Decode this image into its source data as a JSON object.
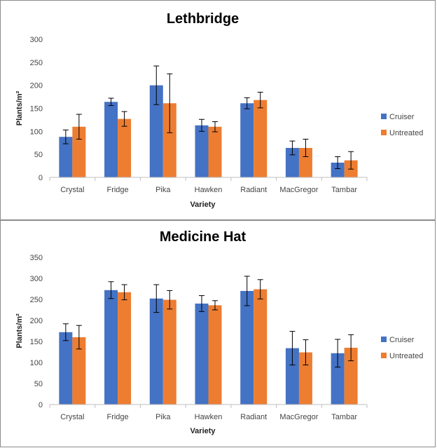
{
  "chart_data": [
    {
      "type": "bar",
      "title": "Lethbridge",
      "xlabel": "Variety",
      "ylabel": "Plants/m²",
      "categories": [
        "Crystal",
        "Fridge",
        "Pika",
        "Hawken",
        "Radiant",
        "MacGregor",
        "Tambar"
      ],
      "ylim": [
        0,
        300
      ],
      "yticks": [
        0,
        50,
        100,
        150,
        200,
        250,
        300
      ],
      "grid": false,
      "legend_position": "right",
      "error_bars": true,
      "series": [
        {
          "name": "Cruiser",
          "color": "#4472C4",
          "values": [
            88,
            164,
            200,
            113,
            161,
            64,
            32
          ],
          "error": [
            15,
            8,
            42,
            13,
            12,
            15,
            13
          ]
        },
        {
          "name": "Untreated",
          "color": "#ED7D31",
          "values": [
            110,
            127,
            161,
            110,
            168,
            64,
            37
          ],
          "error": [
            27,
            16,
            64,
            11,
            17,
            19,
            19
          ]
        }
      ]
    },
    {
      "type": "bar",
      "title": "Medicine Hat",
      "xlabel": "Variety",
      "ylabel": "Plants/m²",
      "categories": [
        "Crystal",
        "Fridge",
        "Pika",
        "Hawken",
        "Radiant",
        "MacGregor",
        "Tambar"
      ],
      "ylim": [
        0,
        350
      ],
      "yticks": [
        0,
        50,
        100,
        150,
        200,
        250,
        300,
        350
      ],
      "grid": false,
      "legend_position": "right",
      "error_bars": true,
      "series": [
        {
          "name": "Cruiser",
          "color": "#4472C4",
          "values": [
            172,
            272,
            252,
            240,
            270,
            134,
            122
          ],
          "error": [
            20,
            20,
            33,
            19,
            35,
            40,
            33
          ]
        },
        {
          "name": "Untreated",
          "color": "#ED7D31",
          "values": [
            160,
            267,
            249,
            236,
            274,
            124,
            135
          ],
          "error": [
            28,
            18,
            22,
            11,
            23,
            30,
            31
          ]
        }
      ]
    }
  ]
}
